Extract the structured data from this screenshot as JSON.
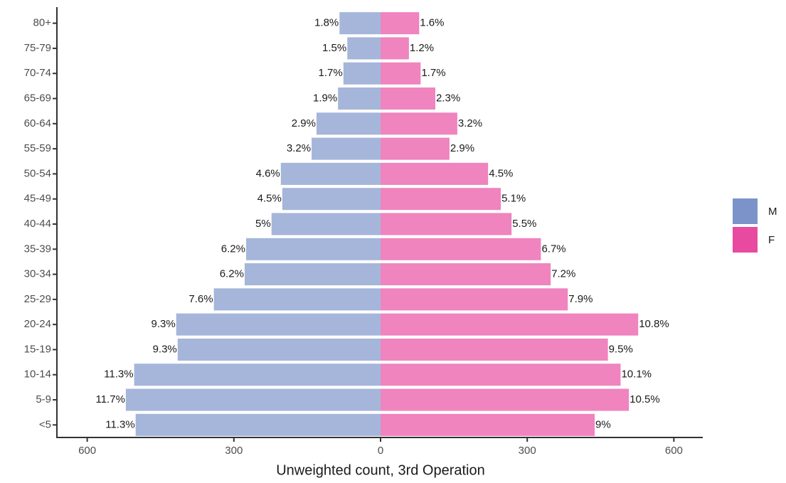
{
  "chart_data": {
    "type": "pyramid",
    "x_label": "Unweighted count, 3rd Operation",
    "categories": [
      "80+",
      "75-79",
      "70-74",
      "65-69",
      "60-64",
      "55-59",
      "50-54",
      "45-49",
      "40-44",
      "35-39",
      "30-34",
      "25-29",
      "20-24",
      "15-19",
      "10-14",
      "5-9",
      "<5"
    ],
    "series": [
      {
        "name": "M",
        "color": "#7b93c9",
        "values": [
          -84,
          -68,
          -76,
          -87,
          -131,
          -141,
          -204,
          -201,
          -223,
          -275,
          -278,
          -341,
          -418,
          -415,
          -504,
          -521,
          -501
        ],
        "labels": [
          "1.8%",
          "1.5%",
          "1.7%",
          "1.9%",
          "2.9%",
          "3.2%",
          "4.6%",
          "4.5%",
          "5%",
          "6.2%",
          "6.2%",
          "7.6%",
          "9.3%",
          "9.3%",
          "11.3%",
          "11.7%",
          "11.3%"
        ]
      },
      {
        "name": "F",
        "color": "#e84aa0",
        "values": [
          79,
          58,
          82,
          112,
          157,
          141,
          220,
          246,
          268,
          328,
          348,
          383,
          527,
          465,
          491,
          508,
          438
        ],
        "labels": [
          "1.6%",
          "1.2%",
          "1.7%",
          "2.3%",
          "3.2%",
          "2.9%",
          "4.5%",
          "5.1%",
          "5.5%",
          "6.7%",
          "7.2%",
          "7.9%",
          "10.8%",
          "9.5%",
          "10.1%",
          "10.5%",
          "9%"
        ]
      }
    ],
    "xlim": [
      -662,
      662
    ],
    "xticks": [
      {
        "value": -600,
        "label": "600"
      },
      {
        "value": -300,
        "label": "300"
      },
      0,
      300,
      600
    ],
    "legend": "right"
  }
}
